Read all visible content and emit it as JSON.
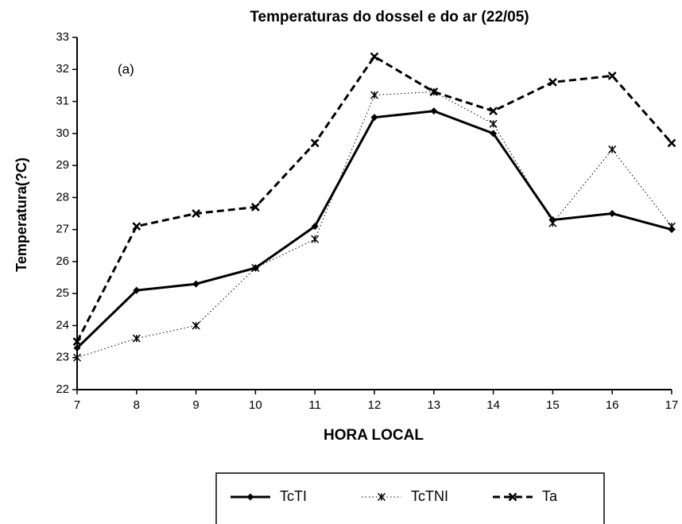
{
  "chart_data": {
    "type": "line",
    "title": "Temperaturas do dossel e do ar (22/05)",
    "annotation": "(a)",
    "x_label": "HORA LOCAL",
    "y_label": "Temperatura(?C)",
    "x": [
      7,
      8,
      9,
      10,
      11,
      12,
      13,
      14,
      15,
      16,
      17
    ],
    "series": [
      {
        "name": "TcTI",
        "color": "#000000",
        "dash": "solid",
        "marker": "diamond",
        "values": [
          23.3,
          25.1,
          25.3,
          25.8,
          27.1,
          30.5,
          30.7,
          30.0,
          27.3,
          27.5,
          27.0
        ]
      },
      {
        "name": "TcTNI",
        "color": "#000000",
        "dash": "dotted",
        "marker": "asterisk",
        "values": [
          23.0,
          23.6,
          24.0,
          25.8,
          26.7,
          31.2,
          31.3,
          30.3,
          27.2,
          29.5,
          27.1
        ]
      },
      {
        "name": "Ta",
        "color": "#000000",
        "dash": "dashed",
        "marker": "cross",
        "values": [
          23.5,
          27.1,
          27.5,
          27.7,
          29.7,
          32.4,
          31.3,
          30.7,
          31.6,
          31.8,
          29.7
        ]
      }
    ],
    "xlim": [
      7,
      17
    ],
    "xticks": [
      7,
      8,
      9,
      10,
      11,
      12,
      13,
      14,
      15,
      16,
      17
    ],
    "ylim": [
      22,
      33
    ],
    "yticks": [
      22,
      23,
      24,
      25,
      26,
      27,
      28,
      29,
      30,
      31,
      32,
      33
    ],
    "grid": false,
    "legend": "bottom"
  }
}
